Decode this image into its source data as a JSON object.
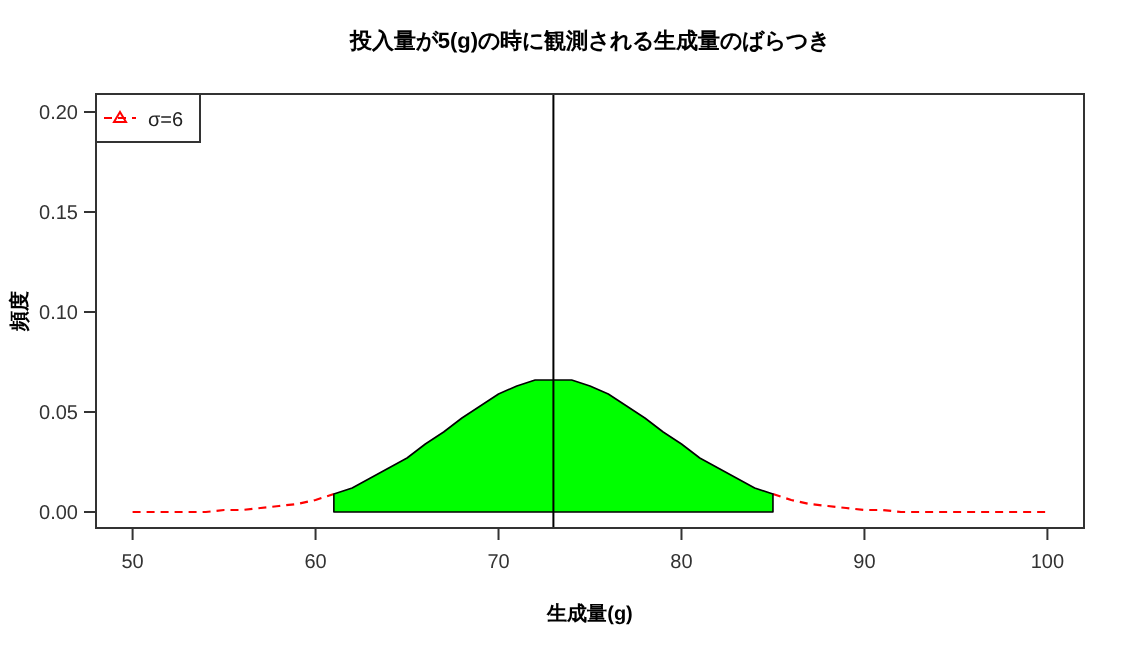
{
  "chart_data": {
    "type": "line",
    "title": "投入量が5(g)の時に観測される生成量のばらつき",
    "xlabel": "生成量(g)",
    "ylabel": "頻度",
    "xlim": [
      48,
      102
    ],
    "ylim": [
      -0.008,
      0.209
    ],
    "xticks": [
      50,
      60,
      70,
      80,
      90,
      100
    ],
    "yticks": [
      {
        "value": 0,
        "label": "0.00"
      },
      {
        "value": 0.05,
        "label": "0.05"
      },
      {
        "value": 0.1,
        "label": "0.10"
      },
      {
        "value": 0.15,
        "label": "0.15"
      },
      {
        "value": 0.2,
        "label": "0.20"
      }
    ],
    "legend": "top left",
    "series": [
      {
        "name": "σ=6",
        "color": "#ff0000",
        "line_style": "dashed",
        "x": [
          50,
          51,
          52,
          53,
          54,
          55,
          56,
          57,
          58,
          59,
          60,
          61
        ],
        "values": [
          0,
          0,
          0,
          0,
          0,
          0.001,
          0.001,
          0.002,
          0.003,
          0.004,
          0.006,
          0.009
        ]
      },
      {
        "color": "#ff0000",
        "line_style": "dashed",
        "x": [
          85,
          86,
          87,
          88,
          89,
          90,
          91,
          92,
          93,
          94,
          95,
          96,
          97,
          98,
          99,
          100
        ],
        "values": [
          0.009,
          0.006,
          0.004,
          0.003,
          0.002,
          0.001,
          0.001,
          0,
          0,
          0,
          0,
          0,
          0,
          0,
          0,
          0
        ]
      },
      {
        "type": "area",
        "color": "#00ff00",
        "x": [
          61,
          62,
          63,
          64,
          65,
          66,
          67,
          68,
          69,
          70,
          71,
          72,
          73,
          74,
          75,
          76,
          77,
          78,
          79,
          80,
          81,
          82,
          83,
          84,
          85
        ],
        "values": [
          0.009,
          0.012,
          0.017,
          0.022,
          0.027,
          0.034,
          0.04,
          0.047,
          0.053,
          0.059,
          0.063,
          0.066,
          0.066,
          0.066,
          0.063,
          0.059,
          0.053,
          0.047,
          0.04,
          0.034,
          0.027,
          0.022,
          0.017,
          0.012,
          0.009
        ]
      }
    ],
    "ref_lines": [
      {
        "axis": "x",
        "value": 73,
        "color": "#000000"
      }
    ]
  }
}
